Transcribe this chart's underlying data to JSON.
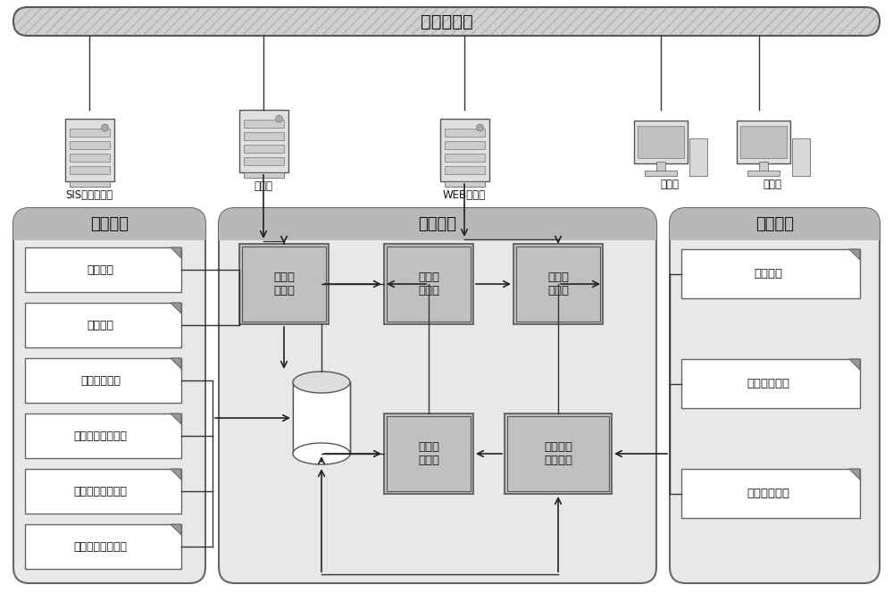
{
  "network_bar_text": "电厂局域网",
  "panel_labels": [
    "专业计算",
    "系统模块",
    "离线数据"
  ],
  "calc_items": [
    "壁温计算",
    "汽温计算",
    "烟温偏差计算",
    "管道蠕变寿命计算",
    "内侧氧化速率计算",
    "烟侧磨损速率计算"
  ],
  "offline_items": [
    "检修数据",
    "无损检测数据",
    "金相分析数据"
  ],
  "sys_module_labels": [
    "数据采\n集模块",
    "热力计\n算模块",
    "网页发\n布模块",
    "寿命计\n算模块",
    "离线数据\n分析模块"
  ],
  "hw_labels": [
    "SIS系统服务器",
    "接口机",
    "WEB服务器",
    "工作站",
    "工作站"
  ],
  "colors": {
    "panel_bg": "#e8e8e8",
    "panel_header": "#b8b8b8",
    "panel_border": "#666666",
    "network_bar": "#d0d0d0",
    "network_hatch": "#aaaaaa",
    "sys_box_bg": "#c0c0c0",
    "sys_box_border": "#555555",
    "doc_box_bg": "#ffffff",
    "doc_box_border": "#666666",
    "doc_fold": "#999999",
    "arrow_color": "#222222",
    "line_color": "#333333",
    "text_dark": "#111111",
    "cylinder_body": "#ffffff",
    "cylinder_top": "#dddddd"
  }
}
